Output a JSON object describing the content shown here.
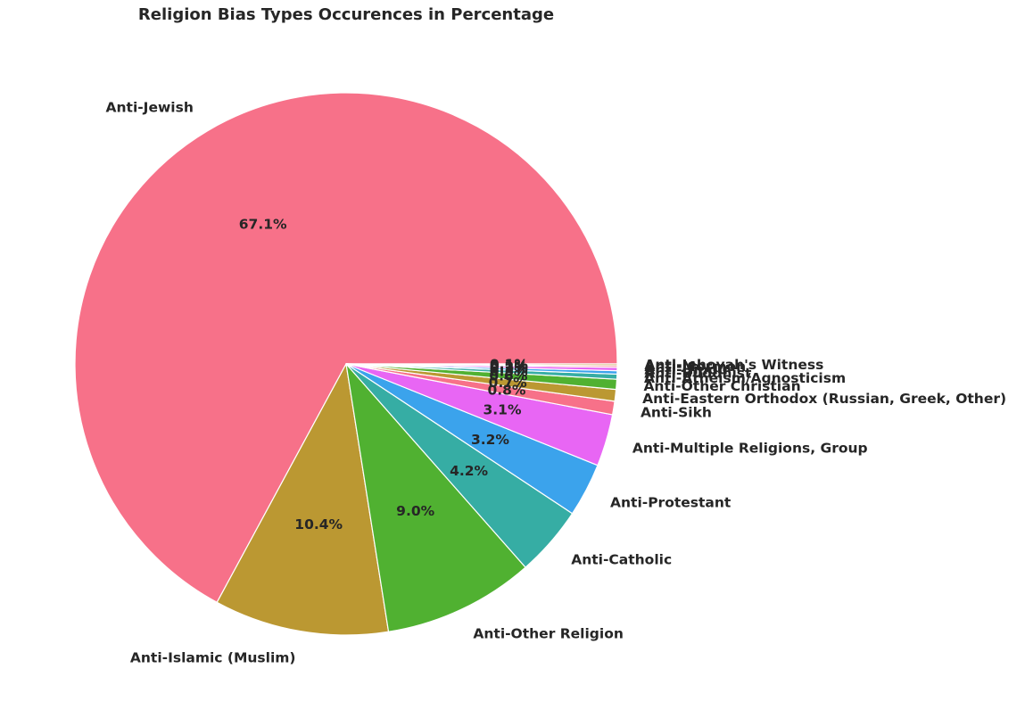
{
  "chart_data": {
    "type": "pie",
    "title": "Religion Bias Types Occurences in Percentage",
    "start_angle": 0,
    "direction": "counterclockwise",
    "slices": [
      {
        "label": "Anti-Jewish",
        "value": 67.1,
        "pct_label": "67.1%",
        "color": "#f77189"
      },
      {
        "label": "Anti-Islamic (Muslim)",
        "value": 10.4,
        "pct_label": "10.4%",
        "color": "#bb9832"
      },
      {
        "label": "Anti-Other Religion",
        "value": 9.0,
        "pct_label": "9.0%",
        "color": "#50b131"
      },
      {
        "label": "Anti-Catholic",
        "value": 4.2,
        "pct_label": "4.2%",
        "color": "#36ada4"
      },
      {
        "label": "Anti-Protestant",
        "value": 3.2,
        "pct_label": "3.2%",
        "color": "#3ba3ec"
      },
      {
        "label": "Anti-Multiple Religions, Group",
        "value": 3.1,
        "pct_label": "3.1%",
        "color": "#e866f4"
      },
      {
        "label": "Anti-Sikh",
        "value": 0.8,
        "pct_label": "0.8%",
        "color": "#f77189"
      },
      {
        "label": "Anti-Eastern Orthodox (Russian, Greek, Other)",
        "value": 0.7,
        "pct_label": "0.7%",
        "color": "#bb9832"
      },
      {
        "label": "Anti-Other Christian",
        "value": 0.6,
        "pct_label": "0.6%",
        "color": "#50b131"
      },
      {
        "label": "Anti-Atheism/Agnosticism",
        "value": 0.3,
        "pct_label": "0.3%",
        "color": "#36ada4"
      },
      {
        "label": "Anti-Buddhist",
        "value": 0.2,
        "pct_label": "0.2%",
        "color": "#3ba3ec"
      },
      {
        "label": "Anti-Hindu",
        "value": 0.2,
        "pct_label": "0.2%",
        "color": "#e866f4"
      },
      {
        "label": "Anti-Mormon",
        "value": 0.1,
        "pct_label": "0.1%",
        "color": "#f77189"
      },
      {
        "label": "Anti-Jehovah's Witness",
        "value": 0.1,
        "pct_label": "0.1%",
        "color": "#bb9832"
      }
    ]
  }
}
